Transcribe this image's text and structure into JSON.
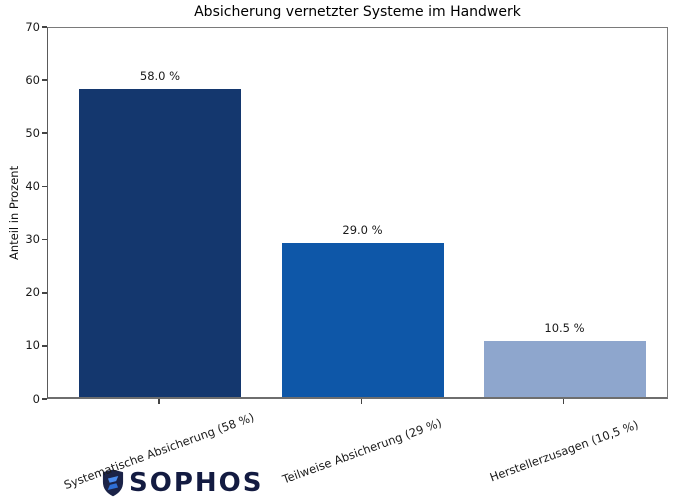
{
  "figure": {
    "title": "Absicherung vernetzter Systeme im Handwerk",
    "ylabel": "Anteil in Prozent"
  },
  "chart_data": {
    "type": "bar",
    "title": "Absicherung vernetzter Systeme im Handwerk",
    "xlabel": "",
    "ylabel": "Anteil in Prozent",
    "categories": [
      "Systematische Absicherung (58 %)",
      "Teilweise Absicherung (29 %)",
      "Herstellerzusagen (10,5 %)"
    ],
    "values": [
      58.0,
      29.0,
      10.5
    ],
    "bar_value_labels": [
      "58.0 %",
      "29.0 %",
      "10.5 %"
    ],
    "bar_colors": [
      "#14376e",
      "#0e57a8",
      "#8ea6cd"
    ],
    "ylim": [
      0,
      70
    ],
    "yticks": [
      0,
      10,
      20,
      30,
      40,
      50,
      60,
      70
    ],
    "grid": false,
    "legend": "none",
    "x_tick_label_rotation_deg": -20
  },
  "logo": {
    "wordmark": "SOPHOS",
    "icon": "sophos-shield-icon",
    "wordmark_color": "#131b41",
    "shield_color": "#1b2348",
    "bolt_color_top": "#4a8cf0",
    "bolt_color_bottom": "#2f6fd6"
  }
}
